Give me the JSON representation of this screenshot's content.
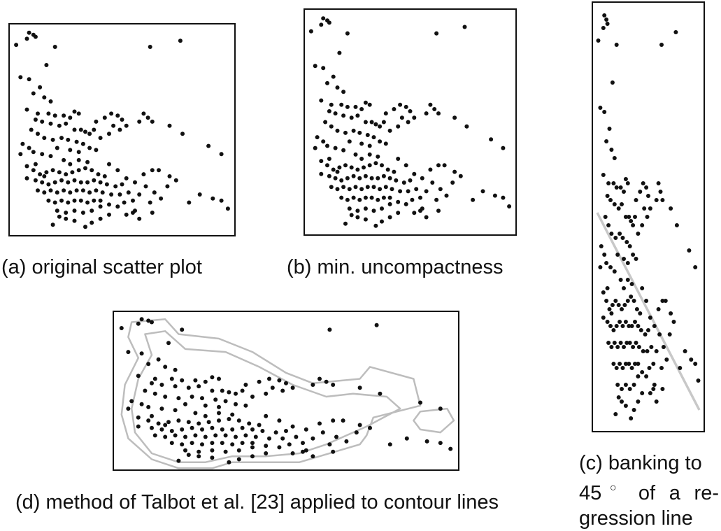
{
  "captions": {
    "a": "(a) original scatter plot",
    "b": "(b) min. uncompactness",
    "c_line1": "(c) banking to",
    "c_deg": "45",
    "c_deg_symbol": "○",
    "c_rest": " of a re-gression line",
    "d": "(d) method of Talbot et al. [23] applied to contour lines"
  },
  "colors": {
    "points": "#111111",
    "regression": "#c8c8c8",
    "contour": "#bdbdbd"
  },
  "chart_data": {
    "type": "scatter",
    "xlim": [
      0,
      100
    ],
    "ylim": [
      0,
      100
    ],
    "points": [
      [
        7,
        98
      ],
      [
        9,
        97
      ],
      [
        6,
        95
      ],
      [
        10,
        96
      ],
      [
        1,
        92
      ],
      [
        19,
        91
      ],
      [
        77,
        94
      ],
      [
        63,
        91
      ],
      [
        3,
        76
      ],
      [
        7,
        75
      ],
      [
        15,
        82
      ],
      [
        12,
        71
      ],
      [
        9,
        68
      ],
      [
        14,
        66
      ],
      [
        17,
        64
      ],
      [
        6,
        60
      ],
      [
        11,
        58
      ],
      [
        16,
        58
      ],
      [
        19,
        57
      ],
      [
        23,
        57
      ],
      [
        26,
        56
      ],
      [
        28,
        59
      ],
      [
        30,
        58
      ],
      [
        10,
        55
      ],
      [
        13,
        54
      ],
      [
        17,
        53
      ],
      [
        21,
        52
      ],
      [
        24,
        53
      ],
      [
        28,
        50
      ],
      [
        31,
        50
      ],
      [
        33,
        49
      ],
      [
        35,
        48
      ],
      [
        8,
        50
      ],
      [
        11,
        48
      ],
      [
        14,
        46
      ],
      [
        18,
        45
      ],
      [
        22,
        46
      ],
      [
        25,
        45
      ],
      [
        29,
        44
      ],
      [
        32,
        43
      ],
      [
        35,
        41
      ],
      [
        38,
        40
      ],
      [
        20,
        41
      ],
      [
        17,
        37
      ],
      [
        13,
        38
      ],
      [
        9,
        39
      ],
      [
        7,
        41
      ],
      [
        4,
        43
      ],
      [
        3,
        38
      ],
      [
        42,
        56
      ],
      [
        45,
        58
      ],
      [
        48,
        57
      ],
      [
        50,
        55
      ],
      [
        46,
        52
      ],
      [
        49,
        50
      ],
      [
        52,
        52
      ],
      [
        44,
        48
      ],
      [
        40,
        46
      ],
      [
        37,
        50
      ],
      [
        38,
        54
      ],
      [
        60,
        58
      ],
      [
        62,
        56
      ],
      [
        58,
        54
      ],
      [
        64,
        54
      ],
      [
        72,
        52
      ],
      [
        78,
        48
      ],
      [
        90,
        42
      ],
      [
        96,
        38
      ],
      [
        6,
        32
      ],
      [
        9,
        30
      ],
      [
        12,
        28
      ],
      [
        15,
        29
      ],
      [
        18,
        30
      ],
      [
        21,
        29
      ],
      [
        24,
        28
      ],
      [
        27,
        29
      ],
      [
        30,
        30
      ],
      [
        33,
        31
      ],
      [
        36,
        30
      ],
      [
        39,
        28
      ],
      [
        42,
        27
      ],
      [
        6,
        26
      ],
      [
        10,
        25
      ],
      [
        13,
        24
      ],
      [
        16,
        23
      ],
      [
        19,
        24
      ],
      [
        22,
        25
      ],
      [
        25,
        24
      ],
      [
        28,
        25
      ],
      [
        31,
        24
      ],
      [
        34,
        24
      ],
      [
        37,
        25
      ],
      [
        40,
        24
      ],
      [
        43,
        23
      ],
      [
        47,
        22
      ],
      [
        50,
        23
      ],
      [
        11,
        20
      ],
      [
        14,
        19
      ],
      [
        17,
        20
      ],
      [
        20,
        19
      ],
      [
        23,
        20
      ],
      [
        26,
        19
      ],
      [
        29,
        20
      ],
      [
        32,
        20
      ],
      [
        35,
        19
      ],
      [
        38,
        20
      ],
      [
        41,
        19
      ],
      [
        45,
        18
      ],
      [
        49,
        18
      ],
      [
        16,
        15
      ],
      [
        19,
        14
      ],
      [
        22,
        15
      ],
      [
        25,
        14
      ],
      [
        28,
        15
      ],
      [
        31,
        15
      ],
      [
        34,
        14
      ],
      [
        37,
        15
      ],
      [
        40,
        15
      ],
      [
        20,
        10
      ],
      [
        24,
        9
      ],
      [
        28,
        10
      ],
      [
        32,
        9
      ],
      [
        36,
        10
      ],
      [
        40,
        12
      ],
      [
        44,
        13
      ],
      [
        48,
        12
      ],
      [
        51,
        14
      ],
      [
        53,
        19
      ],
      [
        55,
        15
      ],
      [
        58,
        18
      ],
      [
        61,
        22
      ],
      [
        65,
        19
      ],
      [
        68,
        16
      ],
      [
        71,
        22
      ],
      [
        75,
        25
      ],
      [
        81,
        14
      ],
      [
        86,
        18
      ],
      [
        92,
        16
      ],
      [
        96,
        15
      ],
      [
        99,
        11
      ],
      [
        18,
        3
      ],
      [
        21,
        7
      ],
      [
        24,
        6
      ],
      [
        28,
        5
      ],
      [
        33,
        2
      ],
      [
        36,
        4
      ],
      [
        40,
        6
      ],
      [
        44,
        8
      ],
      [
        52,
        8
      ],
      [
        55,
        9
      ],
      [
        14,
        27
      ],
      [
        26,
        33
      ],
      [
        30,
        35
      ],
      [
        34,
        34
      ],
      [
        23,
        35
      ],
      [
        26,
        40
      ],
      [
        30,
        39
      ],
      [
        10,
        33
      ],
      [
        44,
        33
      ],
      [
        48,
        30
      ],
      [
        52,
        26
      ],
      [
        56,
        24
      ],
      [
        60,
        28
      ],
      [
        64,
        30
      ],
      [
        67,
        30
      ],
      [
        72,
        27
      ],
      [
        63,
        14
      ],
      [
        64,
        9
      ],
      [
        58,
        6
      ],
      [
        56,
        10
      ]
    ],
    "regression_line": {
      "x": [
        0,
        100
      ],
      "y": [
        51,
        4
      ]
    },
    "contours": [
      [
        [
          4,
          96
        ],
        [
          14,
          98
        ],
        [
          18,
          88
        ],
        [
          30,
          85
        ],
        [
          40,
          76
        ],
        [
          50,
          62
        ],
        [
          58,
          55
        ],
        [
          72,
          58
        ],
        [
          75,
          66
        ],
        [
          88,
          58
        ],
        [
          90,
          40
        ],
        [
          76,
          32
        ],
        [
          74,
          20
        ],
        [
          72,
          14
        ],
        [
          66,
          10
        ],
        [
          60,
          6
        ],
        [
          54,
          2
        ],
        [
          44,
          2
        ],
        [
          34,
          2
        ],
        [
          28,
          -2
        ],
        [
          18,
          -2
        ],
        [
          10,
          4
        ],
        [
          3,
          18
        ],
        [
          1,
          34
        ],
        [
          2,
          54
        ],
        [
          6,
          72
        ],
        [
          3,
          86
        ]
      ],
      [
        [
          8,
          88
        ],
        [
          14,
          90
        ],
        [
          20,
          78
        ],
        [
          32,
          76
        ],
        [
          42,
          66
        ],
        [
          52,
          54
        ],
        [
          62,
          46
        ],
        [
          70,
          48
        ],
        [
          80,
          46
        ],
        [
          84,
          38
        ],
        [
          74,
          26
        ],
        [
          68,
          20
        ],
        [
          62,
          14
        ],
        [
          54,
          8
        ],
        [
          44,
          6
        ],
        [
          34,
          6
        ],
        [
          26,
          2
        ],
        [
          18,
          2
        ],
        [
          10,
          8
        ],
        [
          5,
          22
        ],
        [
          4,
          38
        ],
        [
          6,
          58
        ],
        [
          10,
          74
        ]
      ],
      [
        [
          90,
          36
        ],
        [
          98,
          38
        ],
        [
          100,
          30
        ],
        [
          96,
          22
        ],
        [
          90,
          24
        ],
        [
          88,
          30
        ]
      ]
    ]
  }
}
